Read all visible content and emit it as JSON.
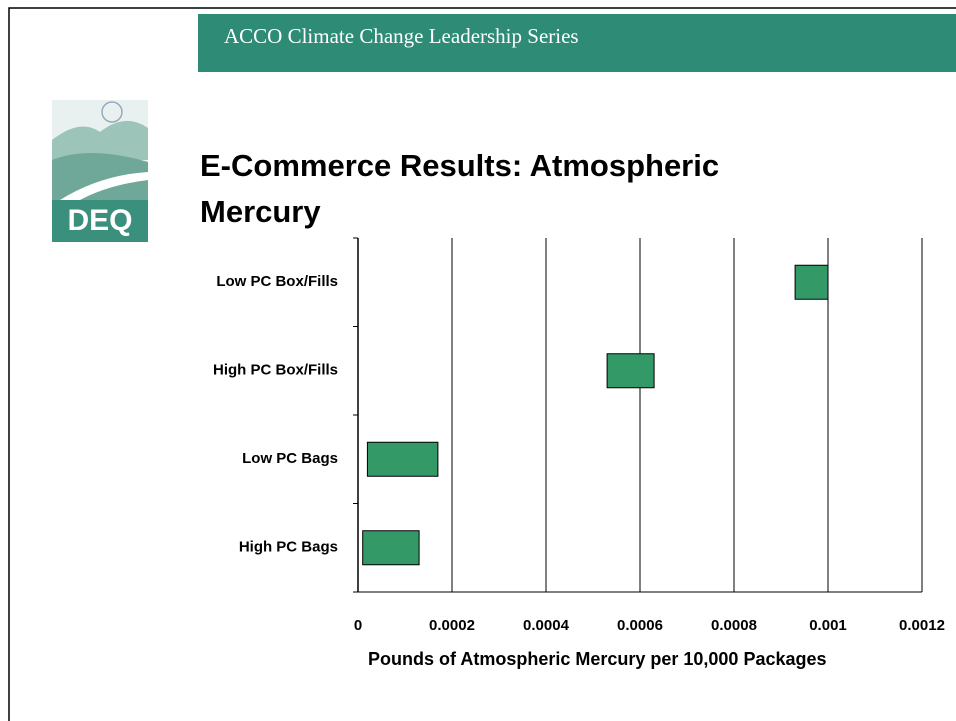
{
  "header": "ACCO Climate Change Leadership Series",
  "logo": "DEQ",
  "chart_data": {
    "type": "floating-bar",
    "title": "E-Commerce Results: Atmospheric Mercury",
    "x_label": "Pounds of Atmospheric Mercury per 10,000 Packages",
    "categories": [
      "Low PC Box/Fills",
      "High PC Box/Fills",
      "Low PC Bags",
      "High PC Bags"
    ],
    "values": [
      [
        0.00093,
        0.001
      ],
      [
        0.00053,
        0.00063
      ],
      [
        2e-05,
        0.00017
      ],
      [
        1e-05,
        0.00013
      ]
    ],
    "color": "#339966",
    "xlim": [
      0,
      0.0012
    ],
    "xticks": [
      0,
      0.0002,
      0.0004,
      0.0006,
      0.0008,
      0.001,
      0.0012
    ],
    "grid": true
  }
}
